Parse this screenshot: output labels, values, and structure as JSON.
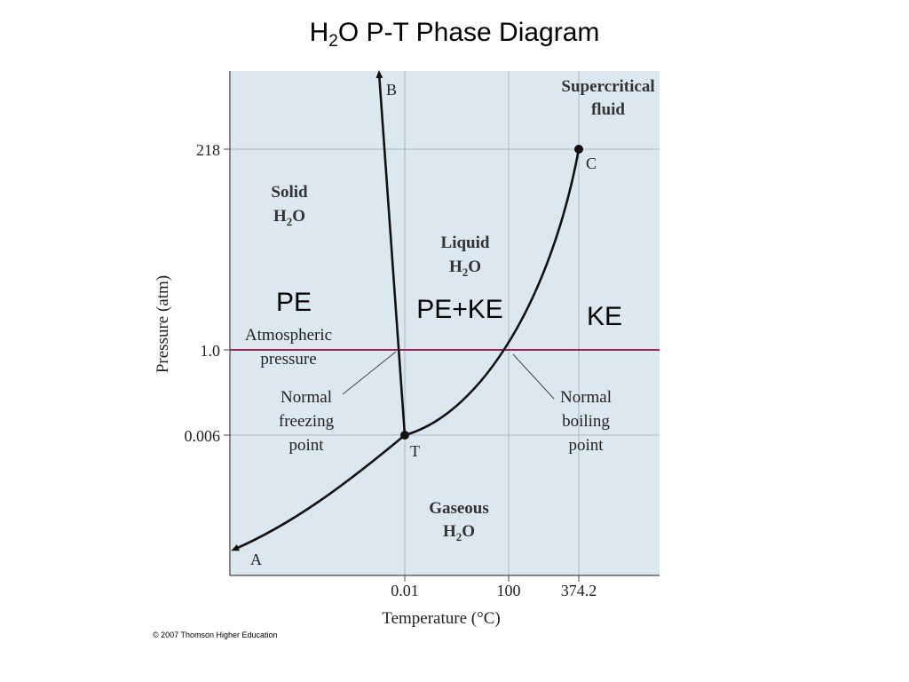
{
  "title": {
    "base": "H",
    "sub": "2",
    "rest": "O P-T Phase Diagram"
  },
  "axes": {
    "ylabel": "Pressure (atm)",
    "xlabel": "Temperature (°C)",
    "yticks": [
      "218",
      "1.0",
      "0.006"
    ],
    "xticks": [
      "0.01",
      "100",
      "374.2"
    ]
  },
  "points": {
    "a": "A",
    "b": "B",
    "c": "C",
    "t": "T"
  },
  "regions": {
    "supercritical": [
      "Supercritical",
      "fluid"
    ],
    "solid": {
      "name": "Solid",
      "formula": "H",
      "sub": "2",
      "rest": "O"
    },
    "liquid": {
      "name": "Liquid",
      "formula": "H",
      "sub": "2",
      "rest": "O"
    },
    "gaseous": {
      "name": "Gaseous",
      "formula": "H",
      "sub": "2",
      "rest": "O"
    }
  },
  "annotations": {
    "atmospheric": [
      "Atmospheric",
      "pressure"
    ],
    "freezing": [
      "Normal",
      "freezing",
      "point"
    ],
    "boiling": [
      "Normal",
      "boiling",
      "point"
    ]
  },
  "energy_labels": {
    "solid": "PE",
    "liquid": "PE+KE",
    "gas": "KE"
  },
  "copyright": "© 2007 Thomson Higher Education",
  "colors": {
    "plot_bg": "#dce8ef",
    "grid": "#aab8c2",
    "atm_line": "#a0205a",
    "curve": "#111111"
  }
}
